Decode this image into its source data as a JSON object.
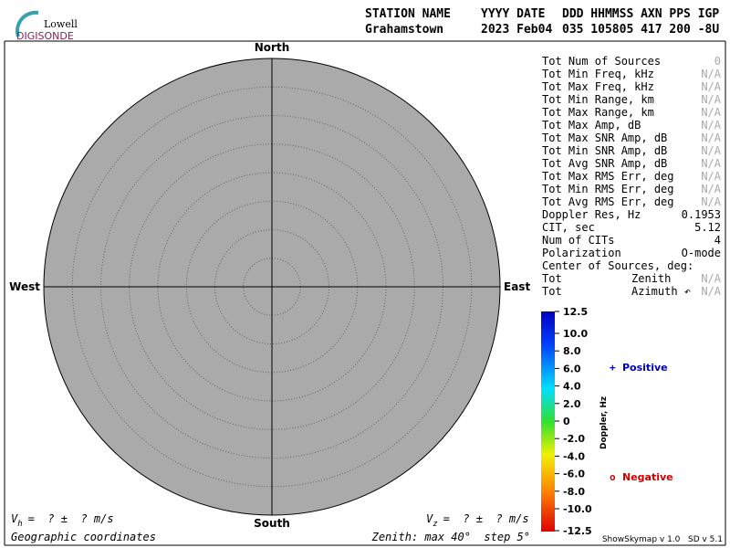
{
  "logo": {
    "top": "Lowell",
    "bottom": "DIGISONDE"
  },
  "header": {
    "labels": [
      "STATION NAME",
      "YYYY DATE",
      "DDD HHMMSS AXN PPS IGP"
    ],
    "values": [
      "Grahamstown",
      "2023 Feb04",
      "035 105805 417 200 -8U"
    ]
  },
  "compass": {
    "north": "North",
    "south": "South",
    "east": "East",
    "west": "West"
  },
  "stats": [
    {
      "label": "Tot Num of Sources",
      "value": "0",
      "color": "#aaaaaa"
    },
    {
      "label": "Tot Min Freq, kHz",
      "value": "N/A",
      "color": "#aaaaaa"
    },
    {
      "label": "Tot Max Freq, kHz",
      "value": "N/A",
      "color": "#aaaaaa"
    },
    {
      "label": "Tot Min Range, km",
      "value": "N/A",
      "color": "#aaaaaa"
    },
    {
      "label": "Tot Max Range, km",
      "value": "N/A",
      "color": "#aaaaaa"
    },
    {
      "label": "Tot Max Amp, dB",
      "value": "N/A",
      "color": "#aaaaaa"
    },
    {
      "label": "Tot Max SNR Amp, dB",
      "value": "N/A",
      "color": "#aaaaaa"
    },
    {
      "label": "Tot Min SNR Amp, dB",
      "value": "N/A",
      "color": "#aaaaaa"
    },
    {
      "label": "Tot Avg SNR Amp, dB",
      "value": "N/A",
      "color": "#aaaaaa"
    },
    {
      "label": "Tot Max RMS Err, deg",
      "value": "N/A",
      "color": "#aaaaaa"
    },
    {
      "label": "Tot Min RMS Err, deg",
      "value": "N/A",
      "color": "#aaaaaa"
    },
    {
      "label": "Tot Avg RMS Err, deg",
      "value": "N/A",
      "color": "#aaaaaa"
    },
    {
      "label": "Doppler Res, Hz",
      "value": "0.1953",
      "color": "#000000"
    },
    {
      "label": "CIT, sec",
      "value": "5.12",
      "color": "#000000"
    },
    {
      "label": "Num of CITs",
      "value": "4",
      "color": "#000000"
    },
    {
      "label": "Polarization",
      "value": "O-mode",
      "color": "#000000"
    },
    {
      "label": "Center of Sources, deg:",
      "value": null,
      "color": "#000000"
    },
    {
      "label": "Tot",
      "sublabel": "Zenith",
      "value": "N/A",
      "color": "#aaaaaa"
    },
    {
      "label": "Tot",
      "sublabel": "Azimuth ↶",
      "value": "N/A",
      "color": "#aaaaaa"
    }
  ],
  "colorbar": {
    "title": "Doppler, Hz",
    "ticks": [
      "12.5",
      "10.0",
      "8.0",
      "6.0",
      "4.0",
      "2.0",
      "0",
      "-2.0",
      "-4.0",
      "-6.0",
      "-8.0",
      "-10.0",
      "-12.5"
    ]
  },
  "legend": {
    "positive": {
      "symbol": "+",
      "label": "Positive"
    },
    "negative": {
      "symbol": "o",
      "label": "Negative"
    }
  },
  "footer": {
    "vh": {
      "v": "V",
      "sub": "h",
      "rest": "=  ? ±  ? m/s"
    },
    "vz": {
      "v": "V",
      "sub": "z",
      "rest": "=  ? ±  ? m/s"
    },
    "coords": "Geographic coordinates",
    "zenith": "Zenith: max 40°  step 5°",
    "version": "ShowSkymap v 1.0   SD v 5.1"
  }
}
